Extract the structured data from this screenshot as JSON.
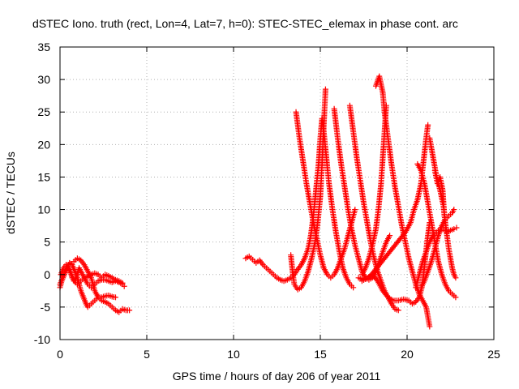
{
  "chart_data": {
    "type": "scatter",
    "title": "dSTEC Iono. truth (rect, Lon=4, Lat=7, h=0): STEC-STEC_elemax in phase cont. arc",
    "xlabel": "GPS time / hours of day 206 of year 2011",
    "ylabel": "dSTEC  / TECUs",
    "xlim": [
      0,
      25
    ],
    "ylim": [
      -10,
      35
    ],
    "xticks": [
      "0",
      "5",
      "10",
      "15",
      "20",
      "25"
    ],
    "yticks": [
      "-10",
      "-5",
      "0",
      "5",
      "10",
      "15",
      "20",
      "25",
      "30",
      "35"
    ],
    "grid": true,
    "legend": "none",
    "marker": "plus",
    "colors": {
      "series": "#ff0000",
      "grid": "#b0b0b0",
      "axis": "#000000"
    },
    "series": [
      {
        "points": [
          [
            0.0,
            -1.5
          ],
          [
            0.15,
            -0.5
          ],
          [
            0.3,
            0.5
          ],
          [
            0.45,
            1.0
          ],
          [
            0.6,
            0.5
          ],
          [
            0.7,
            -0.5
          ],
          [
            0.85,
            -1.0
          ],
          [
            1.0,
            0.0
          ],
          [
            1.1,
            1.0
          ],
          [
            1.2,
            0.5
          ],
          [
            1.4,
            -0.5
          ],
          [
            1.6,
            -1.5
          ],
          [
            1.8,
            -2.0
          ],
          [
            2.0,
            -1.5
          ],
          [
            2.2,
            -1.0
          ],
          [
            2.4,
            -0.8
          ],
          [
            2.6,
            -0.8
          ],
          [
            2.8,
            -1.0
          ],
          [
            3.0,
            -1.2
          ],
          [
            3.2,
            -1.0
          ],
          [
            3.4,
            -1.2
          ],
          [
            3.6,
            -1.5
          ],
          [
            3.7,
            -1.8
          ]
        ]
      },
      {
        "points": [
          [
            0.0,
            -2.0
          ],
          [
            0.1,
            -1.0
          ],
          [
            0.25,
            0.0
          ],
          [
            0.4,
            1.0
          ],
          [
            0.55,
            1.8
          ],
          [
            0.7,
            1.5
          ],
          [
            0.85,
            0.5
          ],
          [
            1.0,
            -0.5
          ],
          [
            1.1,
            -1.5
          ],
          [
            1.2,
            -2.5
          ],
          [
            1.35,
            -3.5
          ],
          [
            1.5,
            -4.5
          ],
          [
            1.6,
            -5.0
          ],
          [
            1.8,
            -4.5
          ],
          [
            2.0,
            -4.0
          ],
          [
            2.2,
            -3.5
          ],
          [
            2.4,
            -3.5
          ],
          [
            2.6,
            -3.3
          ],
          [
            2.8,
            -3.2
          ],
          [
            3.0,
            -3.4
          ],
          [
            3.2,
            -3.5
          ]
        ]
      },
      {
        "points": [
          [
            0.05,
            0.0
          ],
          [
            0.2,
            1.0
          ],
          [
            0.35,
            1.5
          ],
          [
            0.5,
            1.0
          ],
          [
            0.65,
            0.0
          ],
          [
            0.8,
            -1.0
          ],
          [
            1.0,
            -1.5
          ],
          [
            1.2,
            -1.0
          ],
          [
            1.4,
            -0.5
          ],
          [
            1.6,
            -0.3
          ],
          [
            1.8,
            0.0
          ],
          [
            2.0,
            0.2
          ],
          [
            2.2,
            0.0
          ],
          [
            2.4,
            -0.5
          ],
          [
            2.6,
            0.0
          ],
          [
            2.8,
            -0.2
          ],
          [
            3.0,
            -0.5
          ],
          [
            3.2,
            -0.8
          ],
          [
            3.4,
            -1.0
          ],
          [
            3.6,
            -1.3
          ]
        ]
      },
      {
        "points": [
          [
            0.8,
            2.0
          ],
          [
            1.0,
            2.5
          ],
          [
            1.2,
            2.2
          ],
          [
            1.4,
            1.5
          ],
          [
            1.6,
            0.5
          ],
          [
            1.8,
            -0.5
          ],
          [
            1.9,
            -1.5
          ],
          [
            2.0,
            -2.5
          ],
          [
            2.2,
            -3.5
          ],
          [
            2.4,
            -4.0
          ],
          [
            2.6,
            -4.2
          ],
          [
            2.8,
            -4.5
          ],
          [
            3.0,
            -5.0
          ],
          [
            3.2,
            -5.5
          ],
          [
            3.4,
            -5.8
          ],
          [
            3.6,
            -5.3
          ],
          [
            3.8,
            -5.5
          ],
          [
            4.0,
            -5.5
          ]
        ]
      },
      {
        "points": [
          [
            10.7,
            2.5
          ],
          [
            10.9,
            2.8
          ],
          [
            11.1,
            2.3
          ],
          [
            11.3,
            1.8
          ],
          [
            11.5,
            2.2
          ],
          [
            11.7,
            1.5
          ],
          [
            11.9,
            1.0
          ],
          [
            12.1,
            0.5
          ],
          [
            12.3,
            0.0
          ],
          [
            12.5,
            -0.5
          ],
          [
            12.7,
            -0.8
          ],
          [
            12.9,
            -1.0
          ],
          [
            13.1,
            -0.8
          ],
          [
            13.3,
            -0.5
          ],
          [
            13.5,
            0.0
          ],
          [
            13.7,
            0.8
          ],
          [
            13.9,
            1.5
          ],
          [
            14.1,
            2.5
          ],
          [
            14.3,
            4.0
          ],
          [
            14.45,
            6.0
          ],
          [
            14.6,
            9.0
          ],
          [
            14.75,
            13.0
          ],
          [
            14.9,
            17.0
          ],
          [
            15.0,
            21.0
          ],
          [
            15.1,
            24.0
          ],
          [
            15.2,
            22.0
          ],
          [
            15.35,
            18.0
          ],
          [
            15.5,
            14.0
          ],
          [
            15.7,
            10.0
          ],
          [
            15.9,
            6.5
          ],
          [
            16.1,
            3.5
          ],
          [
            16.3,
            1.0
          ],
          [
            16.5,
            -0.5
          ],
          [
            16.7,
            -1.5
          ],
          [
            16.9,
            -2.0
          ]
        ]
      },
      {
        "points": [
          [
            13.3,
            3.0
          ],
          [
            13.4,
            0.5
          ],
          [
            13.5,
            -1.5
          ],
          [
            13.7,
            -2.3
          ],
          [
            13.9,
            -2.0
          ],
          [
            14.1,
            -1.0
          ],
          [
            14.3,
            0.5
          ],
          [
            14.5,
            2.5
          ],
          [
            14.7,
            5.0
          ],
          [
            14.85,
            8.0
          ],
          [
            15.0,
            12.0
          ],
          [
            15.1,
            17.0
          ],
          [
            15.2,
            23.0
          ],
          [
            15.3,
            28.5
          ]
        ]
      },
      {
        "points": [
          [
            13.6,
            25.0
          ],
          [
            13.8,
            21.0
          ],
          [
            14.0,
            17.5
          ],
          [
            14.2,
            14.0
          ],
          [
            14.4,
            11.0
          ],
          [
            14.6,
            8.0
          ],
          [
            14.8,
            5.5
          ],
          [
            15.0,
            3.0
          ],
          [
            15.2,
            1.0
          ],
          [
            15.4,
            0.0
          ],
          [
            15.6,
            -0.5
          ],
          [
            15.8,
            0.0
          ],
          [
            16.0,
            1.0
          ],
          [
            16.2,
            2.5
          ],
          [
            16.4,
            4.0
          ],
          [
            16.6,
            6.0
          ],
          [
            16.8,
            8.0
          ],
          [
            17.0,
            10.0
          ]
        ]
      },
      {
        "points": [
          [
            15.8,
            25.5
          ],
          [
            16.0,
            21.0
          ],
          [
            16.2,
            17.0
          ],
          [
            16.4,
            13.5
          ],
          [
            16.6,
            10.0
          ],
          [
            16.8,
            7.0
          ],
          [
            17.0,
            4.5
          ],
          [
            17.2,
            2.5
          ],
          [
            17.4,
            0.5
          ],
          [
            17.6,
            -0.5
          ],
          [
            17.8,
            -0.8
          ],
          [
            18.0,
            -0.5
          ],
          [
            18.2,
            0.5
          ],
          [
            18.4,
            2.0
          ],
          [
            18.6,
            3.5
          ],
          [
            18.8,
            5.0
          ],
          [
            19.0,
            6.0
          ]
        ]
      },
      {
        "points": [
          [
            16.7,
            26.0
          ],
          [
            16.9,
            22.0
          ],
          [
            17.1,
            18.0
          ],
          [
            17.3,
            14.5
          ],
          [
            17.5,
            11.0
          ],
          [
            17.7,
            8.0
          ],
          [
            17.9,
            5.0
          ],
          [
            18.1,
            2.5
          ],
          [
            18.3,
            0.5
          ],
          [
            18.5,
            -1.0
          ],
          [
            18.7,
            -2.5
          ],
          [
            18.9,
            -3.5
          ],
          [
            19.1,
            -4.5
          ],
          [
            19.3,
            -5.3
          ],
          [
            19.5,
            -5.5
          ]
        ]
      },
      {
        "points": [
          [
            18.2,
            29.0
          ],
          [
            18.4,
            30.5
          ],
          [
            18.6,
            28.0
          ],
          [
            18.7,
            25.0
          ],
          [
            18.9,
            21.0
          ],
          [
            19.1,
            17.0
          ],
          [
            19.3,
            13.5
          ],
          [
            19.5,
            10.5
          ],
          [
            19.7,
            7.5
          ],
          [
            19.9,
            5.0
          ],
          [
            20.1,
            2.5
          ],
          [
            20.3,
            0.5
          ],
          [
            20.5,
            -1.5
          ],
          [
            20.7,
            -3.0
          ],
          [
            20.9,
            -4.0
          ],
          [
            21.1,
            -5.0
          ],
          [
            21.2,
            -6.5
          ],
          [
            21.3,
            -8.0
          ]
        ]
      },
      {
        "points": [
          [
            17.4,
            0.0
          ],
          [
            17.6,
            1.0
          ],
          [
            17.8,
            2.5
          ],
          [
            18.0,
            4.5
          ],
          [
            18.2,
            7.0
          ],
          [
            18.35,
            10.0
          ],
          [
            18.5,
            14.0
          ],
          [
            18.6,
            18.0
          ],
          [
            18.7,
            22.0
          ],
          [
            18.8,
            26.0
          ]
        ]
      },
      {
        "points": [
          [
            17.2,
            -0.5
          ],
          [
            17.5,
            -0.8
          ],
          [
            17.8,
            -0.5
          ],
          [
            18.1,
            0.5
          ],
          [
            18.4,
            1.5
          ],
          [
            18.7,
            2.5
          ],
          [
            19.0,
            3.5
          ],
          [
            19.3,
            4.5
          ],
          [
            19.6,
            5.5
          ],
          [
            19.9,
            6.5
          ],
          [
            20.2,
            8.0
          ],
          [
            20.4,
            10.0
          ],
          [
            20.6,
            11.5
          ],
          [
            20.8,
            14.0
          ],
          [
            20.95,
            17.5
          ],
          [
            21.1,
            21.0
          ],
          [
            21.2,
            23.0
          ]
        ]
      },
      {
        "points": [
          [
            17.4,
            -1.0
          ],
          [
            17.7,
            -0.5
          ],
          [
            18.0,
            0.0
          ],
          [
            18.3,
            -1.0
          ],
          [
            18.6,
            -2.5
          ],
          [
            18.9,
            -3.5
          ],
          [
            19.2,
            -4.0
          ],
          [
            19.5,
            -4.0
          ],
          [
            19.8,
            -3.8
          ],
          [
            20.1,
            -4.0
          ],
          [
            20.3,
            -4.5
          ],
          [
            20.5,
            -4.2
          ],
          [
            20.7,
            -3.5
          ],
          [
            20.85,
            -2.0
          ],
          [
            20.95,
            0.0
          ],
          [
            21.05,
            2.5
          ],
          [
            21.15,
            5.0
          ],
          [
            21.3,
            8.0
          ]
        ]
      },
      {
        "points": [
          [
            21.3,
            21.0
          ],
          [
            21.5,
            18.0
          ],
          [
            21.7,
            15.0
          ],
          [
            21.9,
            13.0
          ],
          [
            22.1,
            10.5
          ],
          [
            22.2,
            8.0
          ],
          [
            22.3,
            6.0
          ],
          [
            22.4,
            4.0
          ],
          [
            22.5,
            2.5
          ],
          [
            22.6,
            1.0
          ],
          [
            22.7,
            0.0
          ],
          [
            22.8,
            -0.5
          ]
        ]
      },
      {
        "points": [
          [
            20.6,
            17.0
          ],
          [
            20.8,
            16.0
          ],
          [
            21.0,
            14.0
          ],
          [
            21.2,
            11.0
          ],
          [
            21.4,
            8.0
          ],
          [
            21.6,
            5.0
          ],
          [
            21.8,
            2.0
          ],
          [
            22.0,
            0.0
          ],
          [
            22.2,
            -1.5
          ],
          [
            22.4,
            -2.5
          ],
          [
            22.6,
            -3.0
          ],
          [
            22.8,
            -3.5
          ]
        ]
      },
      {
        "points": [
          [
            20.5,
            -2.0
          ],
          [
            20.7,
            0.0
          ],
          [
            20.9,
            2.0
          ],
          [
            21.1,
            3.5
          ],
          [
            21.3,
            5.0
          ],
          [
            21.5,
            6.0
          ],
          [
            21.7,
            6.5
          ],
          [
            21.9,
            7.0
          ],
          [
            22.1,
            7.0
          ],
          [
            22.3,
            6.5
          ],
          [
            22.5,
            6.8
          ],
          [
            22.7,
            7.0
          ],
          [
            22.85,
            7.2
          ]
        ]
      },
      {
        "points": [
          [
            20.8,
            -2.0
          ],
          [
            21.0,
            -1.0
          ],
          [
            21.2,
            0.5
          ],
          [
            21.4,
            2.0
          ],
          [
            21.6,
            4.0
          ],
          [
            21.8,
            6.0
          ],
          [
            22.0,
            7.5
          ],
          [
            22.2,
            8.5
          ],
          [
            22.4,
            9.0
          ],
          [
            22.6,
            9.5
          ],
          [
            22.7,
            10.0
          ]
        ]
      },
      {
        "points": [
          [
            21.6,
            16.0
          ],
          [
            21.75,
            14.0
          ],
          [
            21.9,
            15.0
          ],
          [
            22.05,
            13.0
          ],
          [
            22.15,
            9.0
          ]
        ]
      }
    ]
  }
}
